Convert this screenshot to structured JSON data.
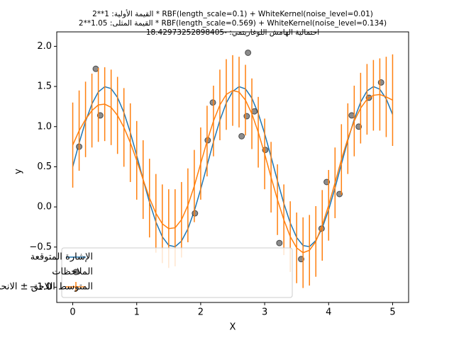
{
  "chart_data": {
    "type": "line",
    "title_lines": [
      "القيمة الأولية: 1**2 * RBF(length_scale=0.1) + WhiteKernel(noise_level=0.01)",
      "القيمة المثلى: 1.05**2 * RBF(length_scale=0.569) + WhiteKernel(noise_level=0.134)",
      "احتمالية الهامش اللوغاريتمي: -18.42973252898405"
    ],
    "xlabel": "X",
    "ylabel": "y",
    "xlim": [
      -0.25,
      5.25
    ],
    "ylim": [
      -1.19,
      2.18
    ],
    "xticks": [
      0,
      1,
      2,
      3,
      4,
      5
    ],
    "yticks": [
      {
        "value": -1.0,
        "label": "−1.0"
      },
      {
        "value": -0.5,
        "label": "−0.5"
      },
      {
        "value": 0.0,
        "label": "0.0"
      },
      {
        "value": 0.5,
        "label": "0.5"
      },
      {
        "value": 1.0,
        "label": "1.0"
      },
      {
        "value": 1.5,
        "label": "1.5"
      },
      {
        "value": 2.0,
        "label": "2.0"
      }
    ],
    "legend": "lower left",
    "series": [
      {
        "name": "الإشارة المتوقعة",
        "kind": "line",
        "color": "#1f77b4",
        "x": [
          0,
          0.1,
          0.2,
          0.3,
          0.4,
          0.5,
          0.6,
          0.7,
          0.8,
          0.9,
          1,
          1.1,
          1.2,
          1.3,
          1.4,
          1.5,
          1.6,
          1.7,
          1.8,
          1.9,
          2,
          2.1,
          2.2,
          2.3,
          2.4,
          2.5,
          2.6,
          2.7,
          2.8,
          2.9,
          3,
          3.1,
          3.2,
          3.3,
          3.4,
          3.5,
          3.6,
          3.7,
          3.8,
          3.9,
          4,
          4.1,
          4.2,
          4.3,
          4.4,
          4.5,
          4.6,
          4.7,
          4.8,
          4.9,
          5
        ],
        "values": [
          0.5,
          0.796,
          1.065,
          1.283,
          1.432,
          1.497,
          1.474,
          1.363,
          1.175,
          0.927,
          0.641,
          0.342,
          0.057,
          -0.188,
          -0.372,
          -0.478,
          -0.496,
          -0.426,
          -0.273,
          -0.051,
          0.221,
          0.517,
          0.811,
          1.078,
          1.294,
          1.438,
          1.498,
          1.47,
          1.355,
          1.163,
          0.912,
          0.624,
          0.326,
          0.043,
          -0.2,
          -0.38,
          -0.481,
          -0.495,
          -0.419,
          -0.262,
          -0.037,
          0.237,
          0.534,
          0.828,
          1.092,
          1.304,
          1.444,
          1.499,
          1.466,
          1.346,
          1.15
        ]
      },
      {
        "name": "الملاحظات",
        "kind": "scatter",
        "color": "#808080",
        "x": [
          0.1,
          0.36,
          0.43,
          1.91,
          2.11,
          2.19,
          2.64,
          2.72,
          2.74,
          2.84,
          3.01,
          3.23,
          3.57,
          3.89,
          3.97,
          4.17,
          4.36,
          4.47,
          4.63,
          4.82
        ],
        "values": [
          0.75,
          1.72,
          1.14,
          -0.08,
          0.83,
          1.3,
          0.88,
          1.13,
          1.92,
          1.19,
          0.71,
          -0.45,
          -0.65,
          -0.27,
          0.31,
          0.16,
          1.14,
          1.0,
          1.36,
          1.55
        ]
      },
      {
        "name": "المتوسط اللاحق ± الانحراف المعياري",
        "kind": "errorline",
        "color": "#ff7f0e",
        "x": [
          0,
          0.1,
          0.2,
          0.3,
          0.4,
          0.5,
          0.6,
          0.7,
          0.8,
          0.9,
          1,
          1.1,
          1.2,
          1.3,
          1.4,
          1.5,
          1.6,
          1.7,
          1.8,
          1.9,
          2,
          2.1,
          2.2,
          2.3,
          2.4,
          2.5,
          2.6,
          2.7,
          2.8,
          2.9,
          3,
          3.1,
          3.2,
          3.3,
          3.4,
          3.5,
          3.6,
          3.7,
          3.8,
          3.9,
          4,
          4.1,
          4.2,
          4.3,
          4.4,
          4.5,
          4.6,
          4.7,
          4.8,
          4.9,
          5
        ],
        "values": [
          0.77,
          0.95,
          1.09,
          1.2,
          1.27,
          1.28,
          1.24,
          1.14,
          0.99,
          0.8,
          0.58,
          0.34,
          0.11,
          -0.08,
          -0.21,
          -0.27,
          -0.26,
          -0.16,
          0.02,
          0.26,
          0.54,
          0.82,
          1.07,
          1.27,
          1.4,
          1.45,
          1.43,
          1.33,
          1.16,
          0.93,
          0.66,
          0.37,
          0.09,
          -0.16,
          -0.37,
          -0.51,
          -0.57,
          -0.54,
          -0.43,
          -0.23,
          0.02,
          0.3,
          0.59,
          0.85,
          1.07,
          1.23,
          1.34,
          1.39,
          1.4,
          1.37,
          1.33
        ],
        "errors": [
          0.53,
          0.5,
          0.47,
          0.46,
          0.46,
          0.46,
          0.47,
          0.48,
          0.49,
          0.49,
          0.49,
          0.49,
          0.49,
          0.49,
          0.49,
          0.49,
          0.48,
          0.47,
          0.46,
          0.45,
          0.45,
          0.44,
          0.44,
          0.44,
          0.44,
          0.44,
          0.44,
          0.44,
          0.44,
          0.44,
          0.44,
          0.44,
          0.44,
          0.44,
          0.44,
          0.44,
          0.44,
          0.44,
          0.44,
          0.44,
          0.44,
          0.44,
          0.44,
          0.44,
          0.44,
          0.44,
          0.44,
          0.44,
          0.45,
          0.5,
          0.57
        ]
      }
    ]
  }
}
